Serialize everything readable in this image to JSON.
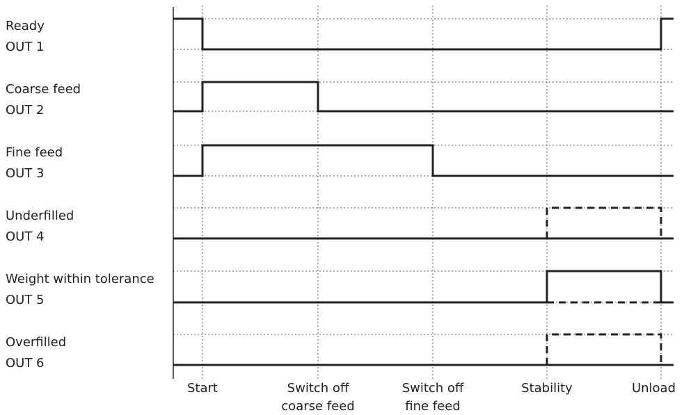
{
  "signals": [
    {
      "name": "Ready",
      "output": "OUT 1",
      "levels": [
        1,
        0,
        0,
        0,
        0,
        1
      ]
    },
    {
      "name": "Coarse feed",
      "output": "OUT 2",
      "levels": [
        0,
        1,
        0,
        0,
        0,
        0
      ]
    },
    {
      "name": "Fine feed",
      "output": "OUT 3",
      "levels": [
        0,
        1,
        1,
        0,
        0,
        0
      ]
    },
    {
      "name": "Underfilled",
      "output": "OUT 4",
      "levels": [
        0,
        0,
        0,
        0,
        0,
        0
      ],
      "conditional_high": [
        4,
        5
      ]
    },
    {
      "name": "Weight within tolerance",
      "output": "OUT 5",
      "levels": [
        0,
        0,
        0,
        0,
        1,
        0
      ],
      "conditional_low": [
        4,
        5
      ]
    },
    {
      "name": "Overfilled",
      "output": "OUT 6",
      "levels": [
        0,
        0,
        0,
        0,
        0,
        0
      ],
      "conditional_high": [
        4,
        5
      ]
    }
  ],
  "events": [
    {
      "line1": "Start",
      "line2": ""
    },
    {
      "line1": "Switch off",
      "line2": "coarse feed"
    },
    {
      "line1": "Switch off",
      "line2": "fine feed"
    },
    {
      "line1": "Stability",
      "line2": ""
    },
    {
      "line1": "Unload",
      "line2": ""
    }
  ]
}
